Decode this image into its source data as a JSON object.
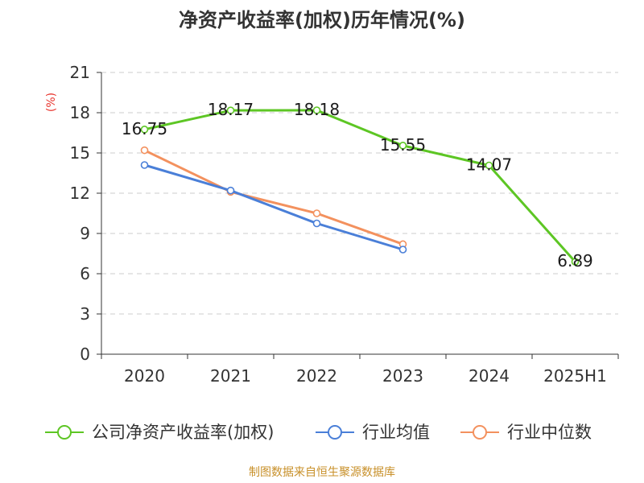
{
  "chart_data": {
    "type": "line",
    "title": "净资产收益率(加权)历年情况(%)",
    "unit_label": "(%)",
    "categories": [
      "2020",
      "2021",
      "2022",
      "2023",
      "2024",
      "2025H1"
    ],
    "ylim": [
      0,
      21
    ],
    "yticks": [
      "0",
      "3",
      "6",
      "9",
      "12",
      "15",
      "18",
      "21"
    ],
    "grid": true,
    "legend_position": "bottom",
    "series": [
      {
        "name": "公司净资产收益率(加权)",
        "color": "#5dc624",
        "values": [
          16.75,
          18.17,
          18.18,
          15.55,
          14.07,
          6.89
        ],
        "labels": [
          "16.75",
          "18.17",
          "18.18",
          "15.55",
          "14.07",
          "6.89"
        ]
      },
      {
        "name": "行业均值",
        "color": "#4a7fd8",
        "values": [
          14.1,
          12.2,
          9.75,
          7.8,
          null,
          null
        ]
      },
      {
        "name": "行业中位数",
        "color": "#f3915e",
        "values": [
          15.2,
          12.1,
          10.5,
          8.2,
          null,
          null
        ]
      }
    ],
    "source": "制图数据来自恒生聚源数据库"
  }
}
